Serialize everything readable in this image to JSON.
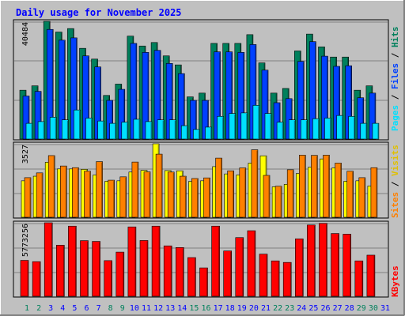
{
  "title": "Daily usage for November 2025",
  "colors": {
    "background": "#C0C0C0",
    "hits": "#00805C",
    "files": "#0040FF",
    "pages": "#00E0FF",
    "visits": "#FFFF00",
    "sites": "#FF8000",
    "kbytes": "#FF0000",
    "weekend_label": "#00805C",
    "weekday_label": "#0000FF"
  },
  "chart_data": [
    {
      "type": "bar",
      "title": "Daily usage for November 2025",
      "categories": [
        "1",
        "2",
        "3",
        "4",
        "5",
        "6",
        "7",
        "8",
        "9",
        "10",
        "11",
        "12",
        "13",
        "14",
        "15",
        "16",
        "17",
        "18",
        "19",
        "20",
        "21",
        "22",
        "23",
        "24",
        "25",
        "26",
        "27",
        "28",
        "29",
        "30",
        "31"
      ],
      "ymax_label": "40484",
      "ylim": [
        0,
        40484
      ],
      "axis_legend": [
        "Pages",
        "Files",
        "Hits"
      ],
      "series": [
        {
          "name": "Hits",
          "color": "#00805C",
          "values": [
            16800,
            18300,
            40484,
            36800,
            38000,
            31200,
            27500,
            15000,
            18900,
            35400,
            32000,
            33200,
            28600,
            25500,
            14500,
            15800,
            32900,
            32900,
            32900,
            35900,
            26200,
            15800,
            17400,
            30300,
            36100,
            31700,
            28200,
            28200,
            16800,
            18300,
            0
          ]
        },
        {
          "name": "Files",
          "color": "#0040FF",
          "values": [
            14800,
            16400,
            37700,
            34000,
            34800,
            28600,
            24800,
            13300,
            17100,
            32900,
            29800,
            30500,
            26000,
            22500,
            13300,
            13300,
            30000,
            30000,
            29800,
            32500,
            23700,
            12500,
            13900,
            26700,
            33500,
            28500,
            25000,
            25200,
            14200,
            15800,
            0
          ]
        },
        {
          "name": "Pages",
          "color": "#00E0FF",
          "values": [
            5400,
            6000,
            7500,
            6600,
            10000,
            7200,
            6200,
            5400,
            5800,
            6800,
            6000,
            6600,
            6600,
            4600,
            3300,
            4100,
            7800,
            8800,
            9000,
            11600,
            8800,
            5800,
            6600,
            6600,
            7000,
            7200,
            8100,
            7800,
            5400,
            5400,
            0
          ]
        }
      ]
    },
    {
      "type": "bar",
      "ymax_label": "3527",
      "ylim": [
        0,
        3527
      ],
      "axis_legend": [
        "Sites",
        "Visits"
      ],
      "series": [
        {
          "name": "Visits",
          "color": "#FFFF00",
          "values": [
            1750,
            1970,
            2640,
            2320,
            2320,
            2300,
            2030,
            1730,
            1750,
            2170,
            2250,
            3527,
            2240,
            2230,
            1720,
            1750,
            2430,
            2080,
            2030,
            2600,
            2950,
            1460,
            1580,
            2100,
            2400,
            2800,
            2370,
            1730,
            1750,
            1500,
            0
          ]
        },
        {
          "name": "Sites",
          "color": "#FF8000",
          "values": [
            1900,
            2130,
            2960,
            2460,
            2380,
            2210,
            2670,
            1780,
            1940,
            2650,
            2180,
            3030,
            2170,
            1970,
            1860,
            1890,
            2840,
            2230,
            2370,
            3240,
            2010,
            1490,
            2280,
            2980,
            2970,
            2980,
            2600,
            2210,
            1900,
            2380,
            0
          ]
        }
      ]
    },
    {
      "type": "bar",
      "ymax_label": "5773256",
      "ylim": [
        0,
        5773256
      ],
      "axis_legend": [
        "KBytes"
      ],
      "series": [
        {
          "name": "KBytes",
          "color": "#FF0000",
          "values": [
            2820000,
            2720000,
            5773256,
            4010000,
            5510000,
            4370000,
            4310000,
            2800000,
            3470000,
            5450000,
            4380000,
            5510000,
            3960000,
            3830000,
            3040000,
            2230000,
            5510000,
            3560000,
            4610000,
            5150000,
            3310000,
            2780000,
            2660000,
            4510000,
            5600000,
            5730000,
            4930000,
            4880000,
            2780000,
            3230000,
            0
          ]
        }
      ]
    }
  ],
  "xlabels": [
    {
      "text": "1",
      "weekend": true
    },
    {
      "text": "2",
      "weekend": true
    },
    {
      "text": "3",
      "weekend": false
    },
    {
      "text": "4",
      "weekend": false
    },
    {
      "text": "5",
      "weekend": false
    },
    {
      "text": "6",
      "weekend": false
    },
    {
      "text": "7",
      "weekend": false
    },
    {
      "text": "8",
      "weekend": true
    },
    {
      "text": "9",
      "weekend": true
    },
    {
      "text": "10",
      "weekend": false
    },
    {
      "text": "11",
      "weekend": false
    },
    {
      "text": "12",
      "weekend": false
    },
    {
      "text": "13",
      "weekend": false
    },
    {
      "text": "14",
      "weekend": false
    },
    {
      "text": "15",
      "weekend": true
    },
    {
      "text": "16",
      "weekend": true
    },
    {
      "text": "17",
      "weekend": false
    },
    {
      "text": "18",
      "weekend": false
    },
    {
      "text": "19",
      "weekend": false
    },
    {
      "text": "20",
      "weekend": false
    },
    {
      "text": "21",
      "weekend": false
    },
    {
      "text": "22",
      "weekend": true
    },
    {
      "text": "23",
      "weekend": true
    },
    {
      "text": "24",
      "weekend": false
    },
    {
      "text": "25",
      "weekend": false
    },
    {
      "text": "26",
      "weekend": false
    },
    {
      "text": "27",
      "weekend": false
    },
    {
      "text": "28",
      "weekend": false
    },
    {
      "text": "29",
      "weekend": true
    },
    {
      "text": "30",
      "weekend": true
    },
    {
      "text": "31",
      "weekend": false
    }
  ]
}
